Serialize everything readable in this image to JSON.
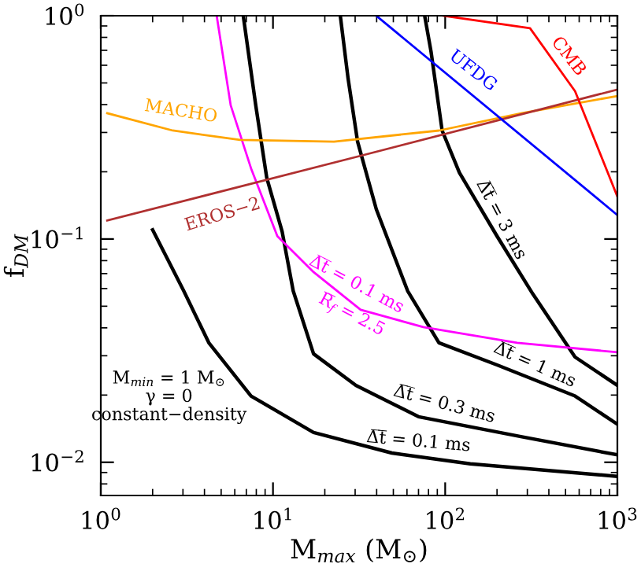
{
  "chart_data": {
    "type": "line",
    "xlabel": "M$_{max}$ (M$_{⊙}$)",
    "ylabel": "f$_{DM}$",
    "log": "xy",
    "xlim": [
      1,
      1000
    ],
    "ylim": [
      0.0071,
      1
    ],
    "xticks": [
      {
        "value": 1,
        "label": "10$^{0}$"
      },
      {
        "value": 10,
        "label": "10$^{1}$"
      },
      {
        "value": 100,
        "label": "10$^{2}$"
      },
      {
        "value": 1000,
        "label": "10$^{3}$"
      }
    ],
    "yticks": [
      {
        "value": 0.01,
        "label": "10$^{−2}$"
      },
      {
        "value": 0.1,
        "label": "10$^{−1}$"
      },
      {
        "value": 1,
        "label": "10$^{0}$"
      }
    ],
    "grid": false,
    "legend": false,
    "series": [
      {
        "color": "#000000",
        "x": [
          2.0,
          3.03,
          4.24,
          7.46,
          17.2,
          49,
          140,
          1000
        ],
        "values": [
          0.11,
          0.0586,
          0.0343,
          0.0198,
          0.0136,
          0.011,
          0.00984,
          0.00865
        ]
      },
      {
        "color": "#000000",
        "x": [
          6.72,
          7.94,
          9.2,
          11.3,
          13.1,
          17.2,
          30.3,
          70,
          279,
          1000
        ],
        "values": [
          1,
          0.397,
          0.188,
          0.108,
          0.0586,
          0.0306,
          0.0221,
          0.016,
          0.013,
          0.0108
        ]
      },
      {
        "color": "#000000",
        "x": [
          24.6,
          27.3,
          31,
          39.8,
          60.5,
          92,
          200,
          568,
          1000
        ],
        "values": [
          1,
          0.523,
          0.273,
          0.136,
          0.0586,
          0.0343,
          0.0273,
          0.0198,
          0.0148
        ]
      },
      {
        "color": "#000000",
        "x": [
          76,
          82.8,
          96,
          121,
          200,
          323,
          568,
          1000
        ],
        "values": [
          1,
          0.689,
          0.306,
          0.198,
          0.103,
          0.0567,
          0.0296,
          0.0221
        ]
      },
      {
        "color": "#ff00ff",
        "x": [
          4.71,
          5.68,
          7.46,
          10.6,
          17.2,
          32.3,
          74.6,
          262,
          1000
        ],
        "values": [
          1,
          0.397,
          0.207,
          0.103,
          0.0711,
          0.0482,
          0.0403,
          0.0343,
          0.0311
        ]
      },
      {
        "color": "#ffa500",
        "x": [
          1.09,
          2.62,
          6.44,
          22.6,
          92,
          279,
          1000
        ],
        "values": [
          0.366,
          0.306,
          0.278,
          0.273,
          0.306,
          0.366,
          0.437
        ]
      },
      {
        "color": "#b03030",
        "x": [
          1.09,
          32.4,
          1000
        ],
        "values": [
          0.121,
          0.236,
          0.467
        ]
      },
      {
        "color": "#0000ff",
        "x": [
          39.8,
          1000
        ],
        "values": [
          1,
          0.128
        ]
      },
      {
        "color": "#ff0000",
        "x": [
          98,
          311,
          568,
          1000
        ],
        "values": [
          1,
          0.879,
          0.459,
          0.155
        ]
      }
    ],
    "annotations": [
      "MACHO",
      "EROS−2",
      "UFDG",
      "CMB",
      "Δ̅t̅ = 3 ms",
      "Δ̅t̅ = 0.1 ms",
      "R̅$_{f}$ = 2.5",
      "Δ̅t̅ = 1 ms",
      "Δ̅t̅ = 0.3 ms",
      "Δ̅t̅ = 0.1 ms",
      "M$_{min}$ = 1 M$_{⊙}$\nγ = 0\nconstant−density"
    ]
  }
}
